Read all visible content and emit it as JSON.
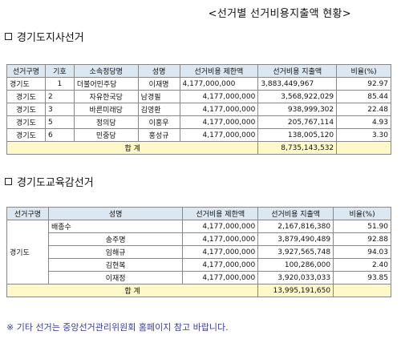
{
  "title": "<선거별 선거비용지출액 현황>",
  "section1": {
    "heading": "경기도지사선거",
    "headers": [
      "선거구명",
      "기호",
      "소속정당명",
      "성명",
      "선거비용 제한액",
      "선거비용 지출액",
      "비율(%)"
    ],
    "rows": [
      {
        "district": "경기도",
        "number": "1",
        "party": "더불어민주당",
        "name": "이재명",
        "limit": "4,177,000,000",
        "spent": "3,883,449,967",
        "ratio": "92.97"
      },
      {
        "district": "경기도",
        "number": "2",
        "party": "자유한국당",
        "name": "남경필",
        "limit": "4,177,000,000",
        "spent": "3,568,922,029",
        "ratio": "85.44"
      },
      {
        "district": "경기도",
        "number": "3",
        "party": "바른미래당",
        "name": "김영환",
        "limit": "4,177,000,000",
        "spent": "938,999,302",
        "ratio": "22.48"
      },
      {
        "district": "경기도",
        "number": "5",
        "party": "정의당",
        "name": "이홍우",
        "limit": "4,177,000,000",
        "spent": "205,767,114",
        "ratio": "4.93"
      },
      {
        "district": "경기도",
        "number": "6",
        "party": "민중당",
        "name": "홍성규",
        "limit": "4,177,000,000",
        "spent": "138,005,120",
        "ratio": "3.30"
      }
    ],
    "total_label": "합 계",
    "total_spent": "8,735,143,532"
  },
  "section2": {
    "heading": "경기도교육감선거",
    "headers": [
      "선거구명",
      "성명",
      "선거비용 제한액",
      "선거비용 지출액",
      "비율(%)"
    ],
    "district": "경기도",
    "rows": [
      {
        "name": "배종수",
        "limit": "4,177,000,000",
        "spent": "2,167,816,380",
        "ratio": "51.90"
      },
      {
        "name": "송주명",
        "limit": "4,177,000,000",
        "spent": "3,879,490,489",
        "ratio": "92.88"
      },
      {
        "name": "임해규",
        "limit": "4,177,000,000",
        "spent": "3,927,565,748",
        "ratio": "94.03"
      },
      {
        "name": "김현복",
        "limit": "4,177,000,000",
        "spent": "100,286,000",
        "ratio": "2.40"
      },
      {
        "name": "이재정",
        "limit": "4,177,000,000",
        "spent": "3,920,033,033",
        "ratio": "93.85"
      }
    ],
    "total_label": "합 계",
    "total_spent": "13,995,191,650"
  },
  "note": "※ 기타 선거는 중앙선거관리위원회 홈페이지 참고 바랍니다."
}
